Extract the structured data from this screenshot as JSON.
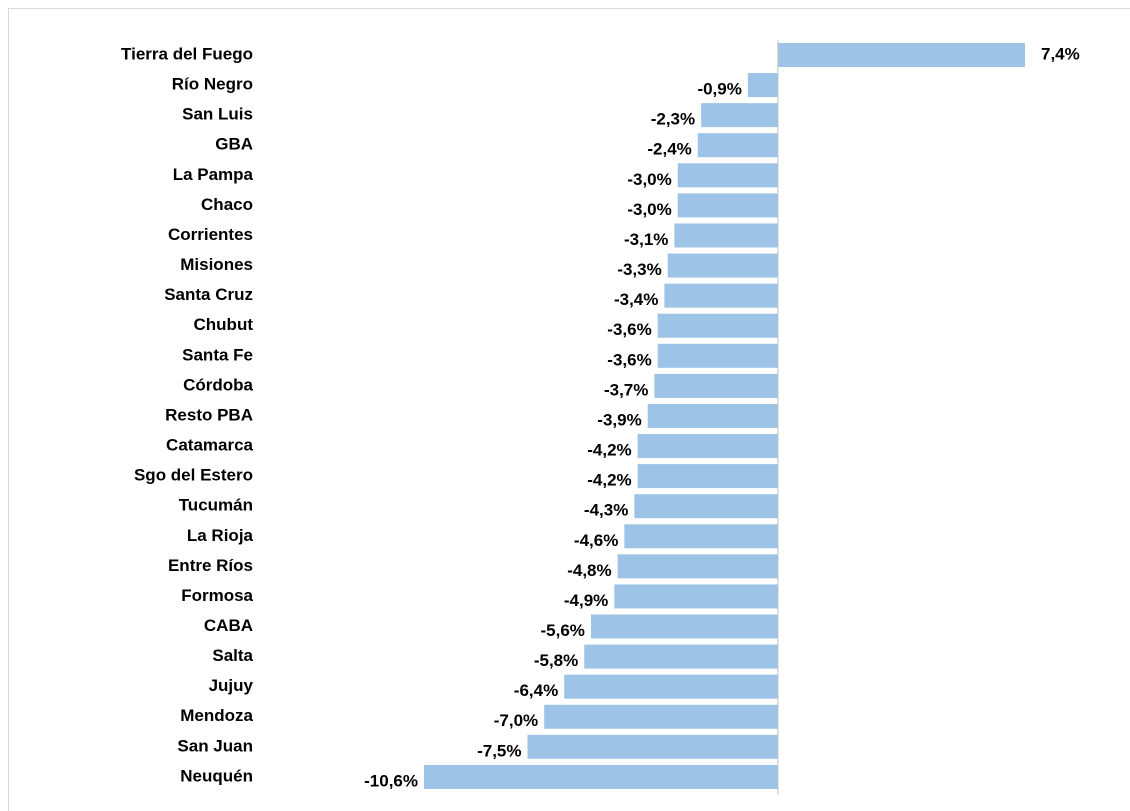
{
  "chart_data": {
    "type": "barh",
    "categories": [
      "Tierra del Fuego",
      "Río Negro",
      "San Luis",
      "GBA",
      "La Pampa",
      "Chaco",
      "Corrientes",
      "Misiones",
      "Santa Cruz",
      "Chubut",
      "Santa Fe",
      "Córdoba",
      "Resto PBA",
      "Catamarca",
      "Sgo del Estero",
      "Tucumán",
      "La Rioja",
      "Entre Ríos",
      "Formosa",
      "CABA",
      "Salta",
      "Jujuy",
      "Mendoza",
      "San Juan",
      "Neuquén"
    ],
    "values": [
      7.4,
      -0.9,
      -2.3,
      -2.4,
      -3.0,
      -3.0,
      -3.1,
      -3.3,
      -3.4,
      -3.6,
      -3.6,
      -3.7,
      -3.9,
      -4.2,
      -4.2,
      -4.3,
      -4.6,
      -4.8,
      -4.9,
      -5.6,
      -5.8,
      -6.4,
      -7.0,
      -7.5,
      -10.6
    ],
    "value_labels": [
      "7,4%",
      "-0,9%",
      "-2,3%",
      "-2,4%",
      "-3,0%",
      "-3,0%",
      "-3,1%",
      "-3,3%",
      "-3,4%",
      "-3,6%",
      "-3,6%",
      "-3,7%",
      "-3,9%",
      "-4,2%",
      "-4,2%",
      "-4,3%",
      "-4,6%",
      "-4,8%",
      "-4,9%",
      "-5,6%",
      "-5,8%",
      "-6,4%",
      "-7,0%",
      "-7,5%",
      "-10,6%"
    ],
    "color": "#9dc3e6"
  }
}
